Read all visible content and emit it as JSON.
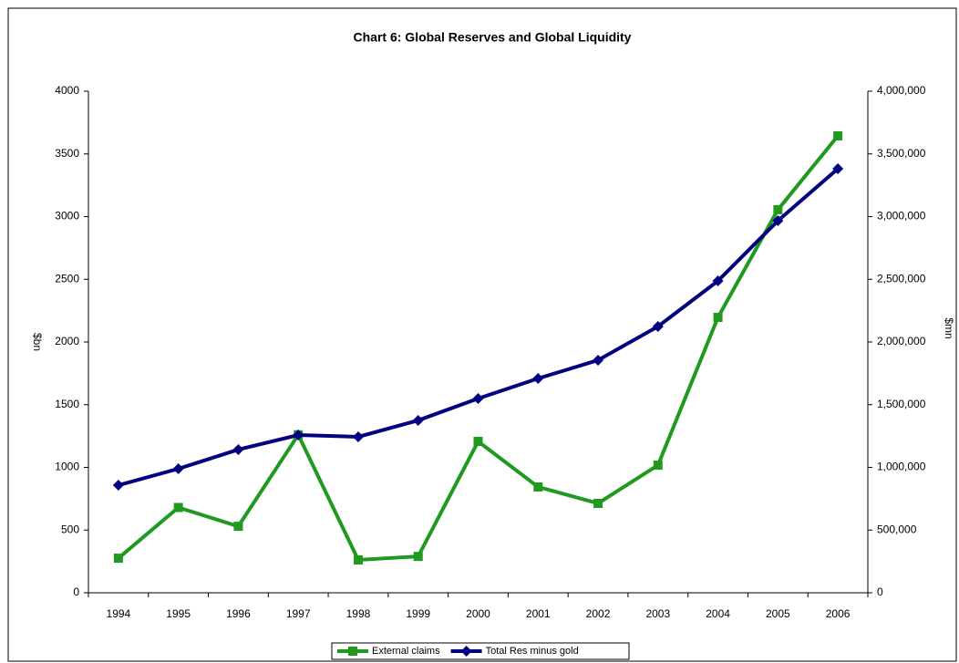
{
  "chart_data": {
    "type": "line",
    "title": "Chart 6: Global Reserves and Global Liquidity",
    "y_label": "$bn",
    "y2_label": "$mn",
    "categories": [
      "1994",
      "1995",
      "1996",
      "1997",
      "1998",
      "1999",
      "2000",
      "2001",
      "2002",
      "2003",
      "2004",
      "2005",
      "2006"
    ],
    "series": [
      {
        "name": "External claims",
        "color": "#1f9a1f",
        "marker": "square",
        "values": [
          276,
          680,
          530,
          1260,
          262,
          290,
          1207,
          844,
          713,
          1018,
          2196,
          3055,
          3644
        ]
      },
      {
        "name": "Total Res minus gold",
        "color": "#000080",
        "marker": "diamond",
        "axis": "y2",
        "values": [
          858000,
          989000,
          1142000,
          1258000,
          1244000,
          1375000,
          1549000,
          1709000,
          1855000,
          2124000,
          2487000,
          2967000,
          3382000
        ]
      }
    ],
    "ylim": [
      0,
      4000
    ],
    "yticks": [
      0,
      500,
      1000,
      1500,
      2000,
      2500,
      3000,
      3500,
      4000
    ],
    "y2lim": [
      0,
      4000000
    ],
    "y2ticks": [
      0,
      {
        "value": 500000,
        "label": "500,000"
      },
      {
        "value": 1000000,
        "label": "1,000,000"
      },
      {
        "value": 1500000,
        "label": "1,500,000"
      },
      {
        "value": 2000000,
        "label": "2,000,000"
      },
      {
        "value": 2500000,
        "label": "2,500,000"
      },
      {
        "value": 3000000,
        "label": "3,000,000"
      },
      {
        "value": 3500000,
        "label": "3,500,000"
      },
      {
        "value": 4000000,
        "label": "4,000,000"
      }
    ],
    "legend": "bottom"
  }
}
